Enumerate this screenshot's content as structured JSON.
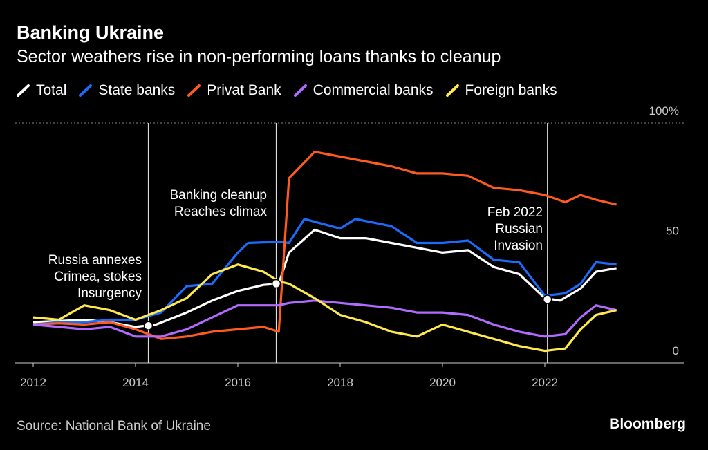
{
  "header": {
    "title": "Banking Ukraine",
    "subtitle": "Sector weathers rise in non-performing loans thanks to cleanup"
  },
  "footer": {
    "source": "Source: National Bank of Ukraine",
    "brand": "Bloomberg"
  },
  "colors": {
    "Total": "#ffffff",
    "State banks": "#1a6cff",
    "Privat Bank": "#ff5a1f",
    "Commercial banks": "#b26bff",
    "Foreign banks": "#ffe94d"
  },
  "chart_data": {
    "type": "line",
    "title": "Banking Ukraine",
    "subtitle": "Sector weathers rise in non-performing loans thanks to cleanup",
    "xlabel": "",
    "ylabel": "",
    "xlim": [
      2012,
      2024.2
    ],
    "ylim": [
      0,
      100
    ],
    "x_ticks": [
      "2012",
      "2014",
      "2016",
      "2018",
      "2020",
      "2022"
    ],
    "y_ticks": [
      "100%",
      "50",
      "0"
    ],
    "grid": "horizontal dotted",
    "legend": "top-left",
    "series": [
      {
        "name": "Total",
        "points": [
          [
            2012,
            17
          ],
          [
            2012.5,
            17.5
          ],
          [
            2013,
            18
          ],
          [
            2013.5,
            17
          ],
          [
            2014,
            15
          ],
          [
            2014.4,
            16
          ],
          [
            2015,
            21
          ],
          [
            2015.5,
            26
          ],
          [
            2016,
            30
          ],
          [
            2016.5,
            32.5
          ],
          [
            2016.8,
            33
          ],
          [
            2017,
            46
          ],
          [
            2017.5,
            55.5
          ],
          [
            2018,
            52
          ],
          [
            2018.5,
            52
          ],
          [
            2019,
            50
          ],
          [
            2019.5,
            48
          ],
          [
            2020,
            46
          ],
          [
            2020.5,
            47
          ],
          [
            2021,
            40
          ],
          [
            2021.5,
            37
          ],
          [
            2022,
            27
          ],
          [
            2022.3,
            26
          ],
          [
            2022.7,
            31
          ],
          [
            2023,
            38
          ],
          [
            2023.4,
            39.5
          ]
        ]
      },
      {
        "name": "State banks",
        "points": [
          [
            2012,
            16
          ],
          [
            2012.5,
            17
          ],
          [
            2013,
            17
          ],
          [
            2013.5,
            18
          ],
          [
            2014,
            18
          ],
          [
            2014.5,
            21
          ],
          [
            2015,
            32
          ],
          [
            2015.5,
            33
          ],
          [
            2016,
            46
          ],
          [
            2016.2,
            50
          ],
          [
            2016.8,
            50.5
          ],
          [
            2017,
            50
          ],
          [
            2017.3,
            60
          ],
          [
            2018,
            56
          ],
          [
            2018.3,
            60
          ],
          [
            2019,
            57
          ],
          [
            2019.5,
            50
          ],
          [
            2020,
            50
          ],
          [
            2020.5,
            51
          ],
          [
            2021,
            43
          ],
          [
            2021.5,
            42
          ],
          [
            2022,
            28
          ],
          [
            2022.4,
            29
          ],
          [
            2022.7,
            33
          ],
          [
            2023,
            42
          ],
          [
            2023.4,
            41
          ]
        ]
      },
      {
        "name": "Privat Bank",
        "points": [
          [
            2012,
            16
          ],
          [
            2012.5,
            16.5
          ],
          [
            2013,
            16
          ],
          [
            2013.5,
            17
          ],
          [
            2014,
            14
          ],
          [
            2014.5,
            10
          ],
          [
            2015,
            11
          ],
          [
            2015.5,
            13
          ],
          [
            2016,
            14
          ],
          [
            2016.5,
            15
          ],
          [
            2016.8,
            13
          ],
          [
            2017,
            77
          ],
          [
            2017.5,
            88
          ],
          [
            2018,
            86
          ],
          [
            2018.5,
            84
          ],
          [
            2019,
            82
          ],
          [
            2019.5,
            79
          ],
          [
            2020,
            79
          ],
          [
            2020.5,
            78
          ],
          [
            2021,
            73
          ],
          [
            2021.5,
            72
          ],
          [
            2022,
            70
          ],
          [
            2022.4,
            67
          ],
          [
            2022.7,
            70
          ],
          [
            2023,
            68
          ],
          [
            2023.4,
            66
          ]
        ]
      },
      {
        "name": "Commercial banks",
        "points": [
          [
            2012,
            16
          ],
          [
            2012.5,
            15
          ],
          [
            2013,
            14
          ],
          [
            2013.5,
            15
          ],
          [
            2014,
            11
          ],
          [
            2014.5,
            11
          ],
          [
            2015,
            14
          ],
          [
            2015.5,
            19
          ],
          [
            2016,
            24
          ],
          [
            2016.5,
            24
          ],
          [
            2016.8,
            24
          ],
          [
            2017,
            25
          ],
          [
            2017.5,
            26
          ],
          [
            2018,
            25
          ],
          [
            2018.5,
            24
          ],
          [
            2019,
            23
          ],
          [
            2019.5,
            21
          ],
          [
            2020,
            21
          ],
          [
            2020.5,
            20
          ],
          [
            2021,
            16
          ],
          [
            2021.5,
            13
          ],
          [
            2022,
            11
          ],
          [
            2022.4,
            12
          ],
          [
            2022.7,
            19
          ],
          [
            2023,
            24
          ],
          [
            2023.4,
            22
          ]
        ]
      },
      {
        "name": "Foreign banks",
        "points": [
          [
            2012,
            19
          ],
          [
            2012.5,
            18
          ],
          [
            2013,
            24
          ],
          [
            2013.5,
            22
          ],
          [
            2014,
            18
          ],
          [
            2014.5,
            22
          ],
          [
            2015,
            27
          ],
          [
            2015.5,
            37
          ],
          [
            2016,
            41
          ],
          [
            2016.5,
            38
          ],
          [
            2016.8,
            34
          ],
          [
            2017,
            33
          ],
          [
            2017.5,
            27
          ],
          [
            2018,
            20
          ],
          [
            2018.5,
            17
          ],
          [
            2019,
            13
          ],
          [
            2019.5,
            11
          ],
          [
            2020,
            16
          ],
          [
            2020.5,
            13
          ],
          [
            2021,
            10
          ],
          [
            2021.5,
            7
          ],
          [
            2022,
            5
          ],
          [
            2022.4,
            6
          ],
          [
            2022.7,
            14
          ],
          [
            2023,
            20
          ],
          [
            2023.4,
            22
          ]
        ]
      }
    ],
    "markers": [
      {
        "series": "Total",
        "x": 2014.25,
        "y": 15.5
      },
      {
        "series": "Total",
        "x": 2016.75,
        "y": 33
      },
      {
        "series": "Total",
        "x": 2022.05,
        "y": 26.5
      }
    ],
    "events": [
      {
        "x": 2014.25,
        "lines": [
          "Russia annexes",
          "Crimea, stokes",
          "Insurgency"
        ]
      },
      {
        "x": 2016.75,
        "lines": [
          "Banking cleanup",
          "Reaches climax"
        ]
      },
      {
        "x": 2022.05,
        "lines": [
          "Feb 2022",
          "Russian",
          "Invasion"
        ]
      }
    ]
  }
}
